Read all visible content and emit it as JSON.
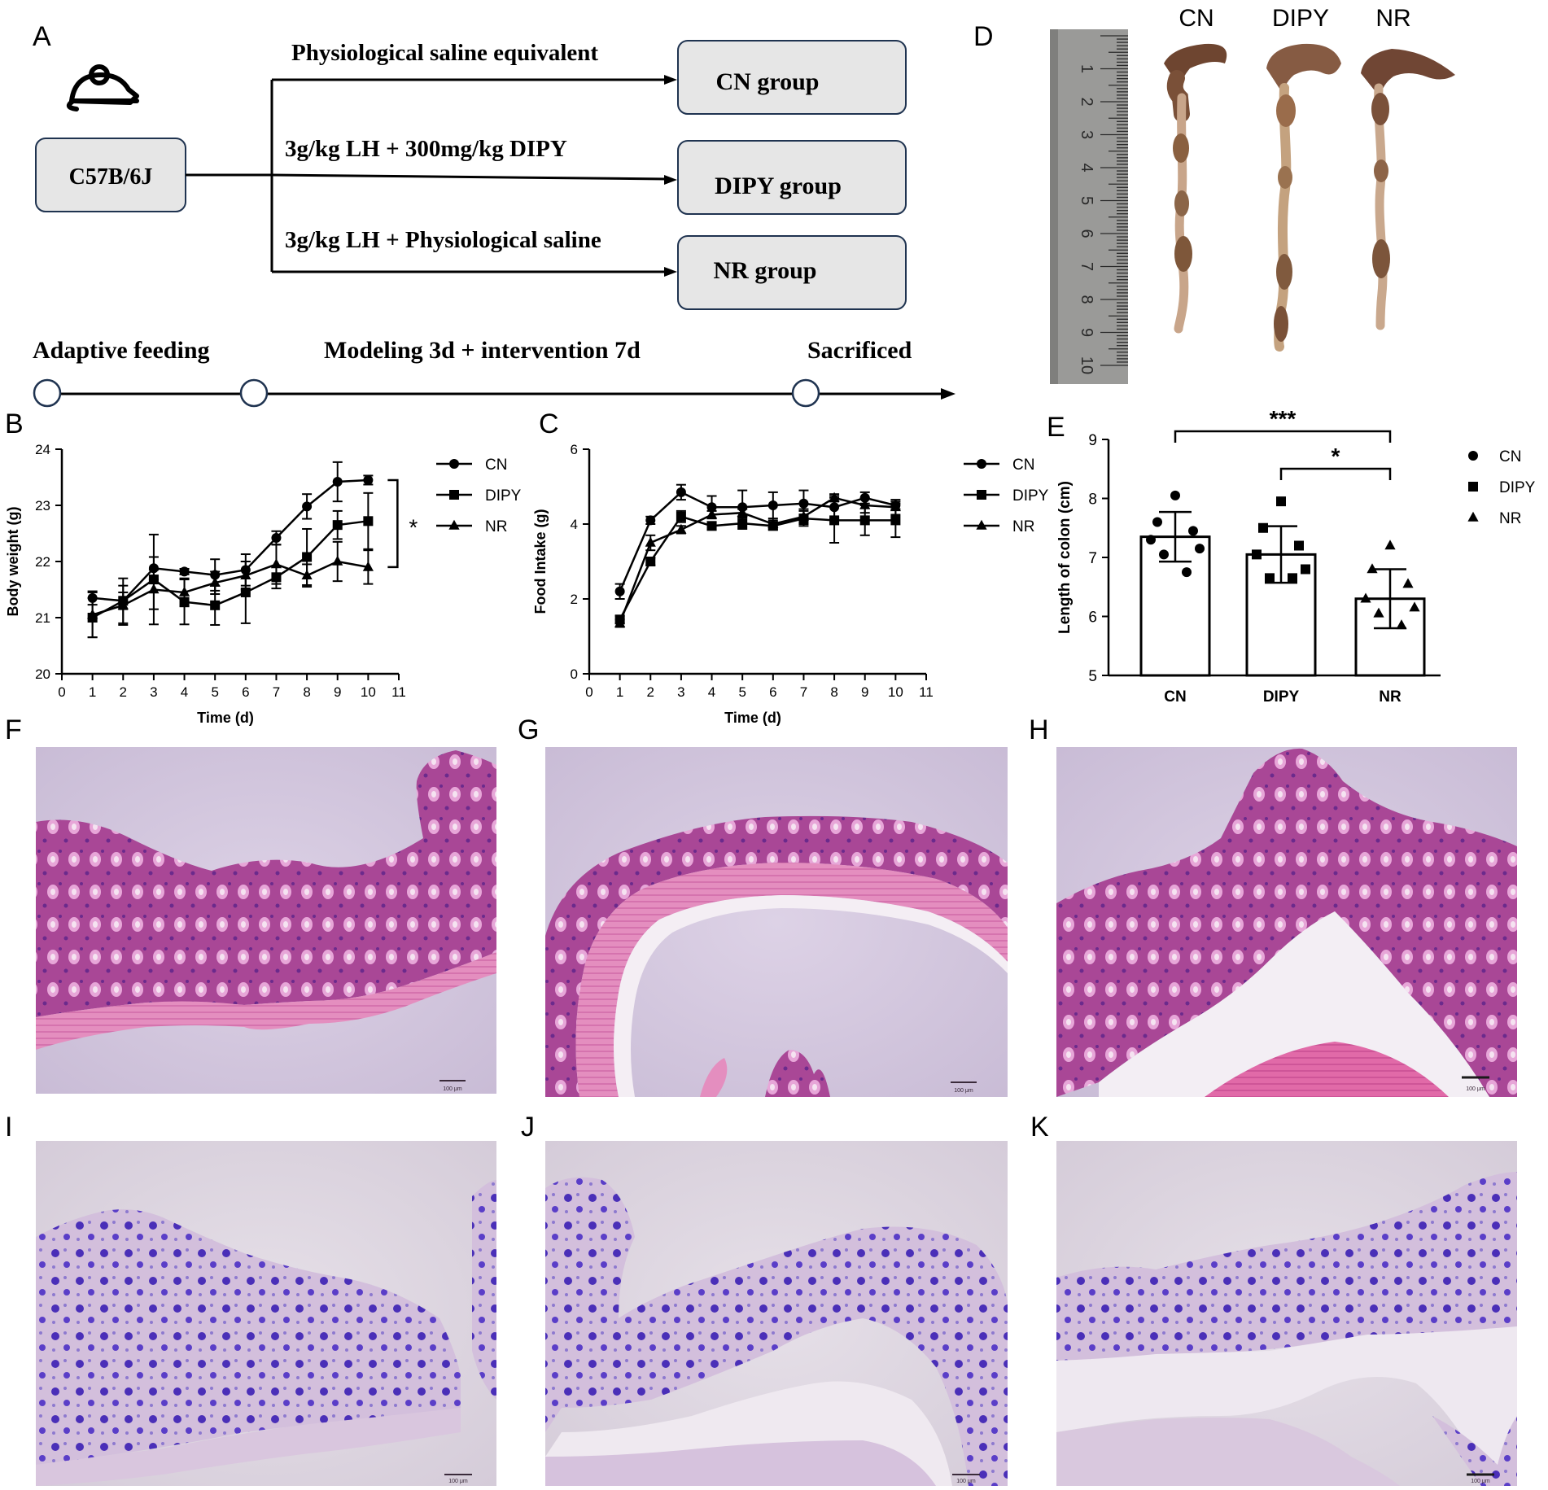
{
  "panel_letters": [
    "A",
    "B",
    "C",
    "D",
    "E",
    "F",
    "G",
    "H",
    "I",
    "J",
    "K"
  ],
  "panel_a": {
    "strain": "C57B/6J",
    "branches": [
      {
        "treatment": "Physiological saline equivalent",
        "group": "CN group"
      },
      {
        "treatment": "3g/kg LH + 300mg/kg DIPY",
        "group": "DIPY group"
      },
      {
        "treatment": "3g/kg LH + Physiological saline",
        "group": "NR group"
      }
    ],
    "timeline": [
      "Adaptive feeding",
      "Modeling 3d + intervention 7d",
      "Sacrificed"
    ],
    "icon": "mouse-icon"
  },
  "panel_d": {
    "groups": [
      "CN",
      "DIPY",
      "NR"
    ],
    "ruler_marks": [
      "1",
      "2",
      "3",
      "4",
      "5",
      "6",
      "7",
      "8",
      "9",
      "10"
    ]
  },
  "micro_scale_label": "100 μm",
  "colors": {
    "line": "#000000",
    "box_fill": "#e6e6e6",
    "he_stain": "#b0449c",
    "pas_stain": "#5a3ec8",
    "background_he": "#d7cbe0",
    "background_pas": "#ddd6e0"
  },
  "chart_data": [
    {
      "panel": "B",
      "type": "line",
      "xlabel": "Time (d)",
      "ylabel": "Body weight (g)",
      "xlim": [
        0,
        11
      ],
      "ylim": [
        20,
        24
      ],
      "xticks": [
        0,
        1,
        2,
        3,
        4,
        5,
        6,
        7,
        8,
        9,
        10,
        11
      ],
      "yticks": [
        20,
        21,
        22,
        23,
        24
      ],
      "x": [
        1,
        2,
        3,
        4,
        5,
        6,
        7,
        8,
        9,
        10
      ],
      "legend": "right",
      "annotation": "*",
      "series": [
        {
          "name": "CN",
          "marker": "circle",
          "values": [
            21.35,
            21.3,
            21.88,
            21.82,
            21.76,
            21.85,
            22.42,
            22.98,
            23.42,
            23.45
          ],
          "err": [
            0.12,
            0.15,
            0.2,
            0.05,
            0.28,
            0.28,
            0.12,
            0.22,
            0.35,
            0.08
          ]
        },
        {
          "name": "DIPY",
          "marker": "square",
          "values": [
            21.0,
            21.3,
            21.68,
            21.28,
            21.22,
            21.45,
            21.72,
            22.08,
            22.65,
            22.72
          ],
          "err": [
            0.35,
            0.4,
            0.8,
            0.4,
            0.35,
            0.55,
            0.2,
            0.5,
            0.25,
            0.5
          ]
        },
        {
          "name": "NR",
          "marker": "triangle",
          "values": [
            21.05,
            21.22,
            21.5,
            21.45,
            21.62,
            21.75,
            21.95,
            21.75,
            22.0,
            21.9
          ],
          "err": [
            0.4,
            0.35,
            0.35,
            0.25,
            0.2,
            0.25,
            0.35,
            0.2,
            0.35,
            0.3
          ]
        }
      ]
    },
    {
      "panel": "C",
      "type": "line",
      "xlabel": "Time (d)",
      "ylabel": "Food Intake (g)",
      "xlim": [
        0,
        11
      ],
      "ylim": [
        0,
        6
      ],
      "xticks": [
        0,
        1,
        2,
        3,
        4,
        5,
        6,
        7,
        8,
        9,
        10,
        11
      ],
      "yticks": [
        0,
        2,
        4,
        6
      ],
      "x": [
        1,
        2,
        3,
        4,
        5,
        6,
        7,
        8,
        9,
        10
      ],
      "legend": "right",
      "series": [
        {
          "name": "CN",
          "marker": "circle",
          "values": [
            2.2,
            4.1,
            4.85,
            4.45,
            4.45,
            4.5,
            4.55,
            4.45,
            4.7,
            4.5
          ],
          "err": [
            0.2,
            0.1,
            0.2,
            0.3,
            0.45,
            0.35,
            0.35,
            0.3,
            0.15,
            0.1
          ]
        },
        {
          "name": "DIPY",
          "marker": "square",
          "values": [
            1.45,
            3.0,
            4.2,
            3.95,
            4.02,
            3.95,
            4.15,
            4.1,
            4.1,
            4.1
          ],
          "err": [
            0.1,
            0.1,
            0.15,
            0.1,
            0.15,
            0.1,
            0.2,
            0.6,
            0.4,
            0.45
          ]
        },
        {
          "name": "NR",
          "marker": "triangle",
          "values": [
            1.35,
            3.5,
            3.85,
            4.25,
            4.3,
            4.0,
            4.2,
            4.7,
            4.5,
            4.45
          ],
          "err": [
            0.1,
            0.2,
            0.1,
            0.1,
            0.1,
            0.1,
            0.2,
            0.1,
            0.2,
            0.2
          ]
        }
      ]
    },
    {
      "panel": "E",
      "type": "bar",
      "categories": [
        "CN",
        "DIPY",
        "NR"
      ],
      "ylabel": "Length of colon (cm)",
      "ylim": [
        5,
        9
      ],
      "yticks": [
        5,
        6,
        7,
        8,
        9
      ],
      "values": [
        7.35,
        7.05,
        6.3
      ],
      "err": [
        0.42,
        0.48,
        0.5
      ],
      "points": [
        [
          8.05,
          7.6,
          7.45,
          7.3,
          7.15,
          7.05,
          6.75
        ],
        [
          7.95,
          7.5,
          7.2,
          7.05,
          6.8,
          6.65,
          6.65
        ],
        [
          7.2,
          6.8,
          6.55,
          6.3,
          6.15,
          6.05,
          5.85
        ]
      ],
      "markers": [
        "circle",
        "square",
        "triangle"
      ],
      "legend": [
        "CN",
        "DIPY",
        "NR"
      ],
      "significance": [
        {
          "from": "CN",
          "to": "NR",
          "label": "***"
        },
        {
          "from": "DIPY",
          "to": "NR",
          "label": "*"
        }
      ]
    }
  ]
}
